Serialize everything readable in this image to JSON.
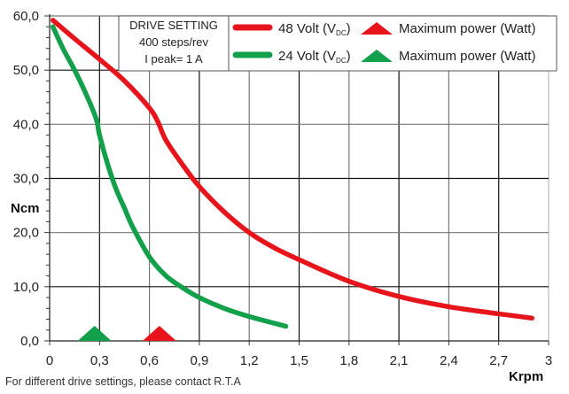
{
  "chart_data": {
    "type": "line",
    "title": "",
    "xlabel": "Krpm",
    "ylabel": "Ncm",
    "xlim": [
      0,
      3
    ],
    "ylim": [
      0,
      60
    ],
    "grid": true,
    "x_ticks": [
      "0",
      "0,3",
      "0,6",
      "0,9",
      "1,2",
      "1,5",
      "1,8",
      "2,1",
      "2,4",
      "2,7",
      "3"
    ],
    "x_tick_values": [
      0,
      0.3,
      0.6,
      0.9,
      1.2,
      1.5,
      1.8,
      2.1,
      2.4,
      2.7,
      3
    ],
    "y_ticks": [
      "0,0",
      "10,0",
      "20,0",
      "30,0",
      "40,0",
      "50,0",
      "60,0"
    ],
    "y_tick_values": [
      0,
      10,
      20,
      30,
      40,
      50,
      60
    ],
    "series": [
      {
        "name": "48 Volt (VDC)",
        "label_main": "48 Volt (V",
        "label_sub": "DC",
        "label_end": ")",
        "color": "#e8141c",
        "x": [
          0.02,
          0.15,
          0.3,
          0.45,
          0.6,
          0.65,
          0.7,
          0.8,
          0.9,
          1.05,
          1.2,
          1.35,
          1.5,
          1.8,
          2.1,
          2.4,
          2.7,
          2.9
        ],
        "y": [
          59.2,
          55.8,
          52,
          48,
          43,
          40.5,
          37,
          32.5,
          28.5,
          23.8,
          20,
          17.2,
          15,
          11,
          8.2,
          6.3,
          5,
          4.2
        ]
      },
      {
        "name": "24 Volt (VDC)",
        "label_main": "24 Volt (V",
        "label_sub": "DC",
        "label_end": ")",
        "color": "#12a14a",
        "x": [
          0.02,
          0.08,
          0.15,
          0.22,
          0.28,
          0.3,
          0.35,
          0.4,
          0.45,
          0.5,
          0.6,
          0.7,
          0.8,
          0.9,
          1.05,
          1.2,
          1.42
        ],
        "y": [
          58,
          54,
          50,
          45.5,
          41,
          38,
          32.5,
          28,
          24.5,
          21,
          15.5,
          12,
          9.8,
          8,
          6,
          4.5,
          2.7
        ]
      }
    ],
    "markers": [
      {
        "name": "Maximum power (Watt)",
        "series": "48 Volt",
        "x": 0.66,
        "y": 0,
        "shape": "triangle",
        "color": "#e8141c"
      },
      {
        "name": "Maximum power (Watt)",
        "series": "24 Volt",
        "x": 0.27,
        "y": 0,
        "shape": "triangle",
        "color": "#12a14a"
      }
    ],
    "legend_placement": "top-right",
    "annotation_box": {
      "lines": [
        "DRIVE SETTING",
        "400 steps/rev",
        "I peak= 1 A"
      ]
    },
    "marker_legend_label": "Maximum power (Watt)",
    "footnote": "For different drive settings, please contact R.T.A"
  }
}
